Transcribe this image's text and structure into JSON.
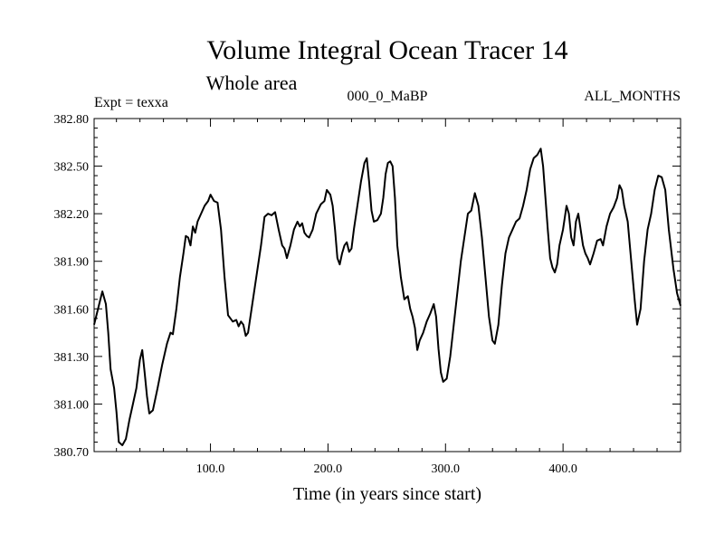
{
  "chart_data": {
    "type": "line",
    "title": "Volume Integral Ocean Tracer 14",
    "subtitle": "Whole area",
    "left_label": "Expt = texxa",
    "center_label": "000_0_MaBP",
    "right_label": "ALL_MONTHS",
    "xlabel": "Time (in years since start)",
    "ylabel": "",
    "xlim": [
      1,
      500
    ],
    "ylim": [
      380.7,
      382.8
    ],
    "x_ticks": [
      100,
      200,
      300,
      400
    ],
    "x_tick_labels": [
      "100.0",
      "200.0",
      "300.0",
      "400.0"
    ],
    "y_ticks": [
      380.7,
      381.0,
      381.3,
      381.6,
      381.9,
      382.2,
      382.5,
      382.8
    ],
    "y_tick_labels": [
      "380.70",
      "381.00",
      "381.30",
      "381.60",
      "381.90",
      "382.20",
      "382.50",
      "382.80"
    ],
    "grid": false,
    "color": "#000000",
    "series": [
      {
        "name": "Tracer 14",
        "points": [
          [
            1,
            381.5
          ],
          [
            5,
            381.62
          ],
          [
            8,
            381.71
          ],
          [
            11,
            381.63
          ],
          [
            13,
            381.45
          ],
          [
            15,
            381.22
          ],
          [
            18,
            381.1
          ],
          [
            20,
            380.95
          ],
          [
            22,
            380.76
          ],
          [
            25,
            380.74
          ],
          [
            28,
            380.78
          ],
          [
            31,
            380.9
          ],
          [
            34,
            381.0
          ],
          [
            37,
            381.1
          ],
          [
            40,
            381.28
          ],
          [
            42,
            381.34
          ],
          [
            44,
            381.2
          ],
          [
            46,
            381.05
          ],
          [
            48,
            380.94
          ],
          [
            51,
            380.96
          ],
          [
            55,
            381.1
          ],
          [
            59,
            381.25
          ],
          [
            63,
            381.38
          ],
          [
            66,
            381.45
          ],
          [
            68,
            381.44
          ],
          [
            71,
            381.6
          ],
          [
            74,
            381.8
          ],
          [
            77,
            381.95
          ],
          [
            79,
            382.06
          ],
          [
            81,
            382.05
          ],
          [
            83,
            382.0
          ],
          [
            85,
            382.12
          ],
          [
            87,
            382.08
          ],
          [
            89,
            382.15
          ],
          [
            92,
            382.2
          ],
          [
            95,
            382.25
          ],
          [
            98,
            382.28
          ],
          [
            100,
            382.32
          ],
          [
            103,
            382.28
          ],
          [
            106,
            382.27
          ],
          [
            109,
            382.1
          ],
          [
            112,
            381.8
          ],
          [
            115,
            381.56
          ],
          [
            119,
            381.52
          ],
          [
            122,
            381.53
          ],
          [
            124,
            381.49
          ],
          [
            126,
            381.52
          ],
          [
            128,
            381.5
          ],
          [
            130,
            381.43
          ],
          [
            132,
            381.45
          ],
          [
            135,
            381.6
          ],
          [
            139,
            381.8
          ],
          [
            143,
            382.0
          ],
          [
            146,
            382.18
          ],
          [
            149,
            382.2
          ],
          [
            152,
            382.19
          ],
          [
            155,
            382.21
          ],
          [
            158,
            382.1
          ],
          [
            161,
            382.0
          ],
          [
            163,
            381.98
          ],
          [
            165,
            381.92
          ],
          [
            168,
            382.0
          ],
          [
            171,
            382.1
          ],
          [
            174,
            382.15
          ],
          [
            176,
            382.12
          ],
          [
            178,
            382.14
          ],
          [
            180,
            382.08
          ],
          [
            182,
            382.06
          ],
          [
            184,
            382.05
          ],
          [
            187,
            382.1
          ],
          [
            190,
            382.2
          ],
          [
            194,
            382.26
          ],
          [
            197,
            382.28
          ],
          [
            199,
            382.35
          ],
          [
            202,
            382.32
          ],
          [
            204,
            382.25
          ],
          [
            206,
            382.1
          ],
          [
            208,
            381.92
          ],
          [
            210,
            381.88
          ],
          [
            212,
            381.95
          ],
          [
            214,
            382.0
          ],
          [
            216,
            382.02
          ],
          [
            218,
            381.96
          ],
          [
            220,
            381.98
          ],
          [
            222,
            382.1
          ],
          [
            225,
            382.25
          ],
          [
            228,
            382.4
          ],
          [
            231,
            382.52
          ],
          [
            233,
            382.55
          ],
          [
            235,
            382.4
          ],
          [
            237,
            382.22
          ],
          [
            239,
            382.15
          ],
          [
            242,
            382.16
          ],
          [
            245,
            382.2
          ],
          [
            247,
            382.3
          ],
          [
            249,
            382.45
          ],
          [
            251,
            382.52
          ],
          [
            253,
            382.53
          ],
          [
            255,
            382.5
          ],
          [
            257,
            382.3
          ],
          [
            259,
            382.0
          ],
          [
            262,
            381.8
          ],
          [
            265,
            381.66
          ],
          [
            268,
            381.68
          ],
          [
            270,
            381.6
          ],
          [
            272,
            381.55
          ],
          [
            274,
            381.48
          ],
          [
            276,
            381.34
          ],
          [
            278,
            381.4
          ],
          [
            281,
            381.45
          ],
          [
            284,
            381.52
          ],
          [
            287,
            381.57
          ],
          [
            290,
            381.63
          ],
          [
            292,
            381.55
          ],
          [
            294,
            381.35
          ],
          [
            296,
            381.2
          ],
          [
            298,
            381.14
          ],
          [
            301,
            381.16
          ],
          [
            304,
            381.3
          ],
          [
            307,
            381.5
          ],
          [
            310,
            381.7
          ],
          [
            313,
            381.9
          ],
          [
            316,
            382.05
          ],
          [
            319,
            382.2
          ],
          [
            322,
            382.22
          ],
          [
            325,
            382.33
          ],
          [
            328,
            382.25
          ],
          [
            331,
            382.05
          ],
          [
            334,
            381.8
          ],
          [
            337,
            381.55
          ],
          [
            340,
            381.4
          ],
          [
            342,
            381.38
          ],
          [
            345,
            381.5
          ],
          [
            348,
            381.75
          ],
          [
            351,
            381.95
          ],
          [
            354,
            382.05
          ],
          [
            357,
            382.1
          ],
          [
            360,
            382.15
          ],
          [
            363,
            382.17
          ],
          [
            366,
            382.25
          ],
          [
            369,
            382.35
          ],
          [
            372,
            382.48
          ],
          [
            375,
            382.55
          ],
          [
            378,
            382.57
          ],
          [
            381,
            382.61
          ],
          [
            383,
            382.5
          ],
          [
            385,
            382.3
          ],
          [
            387,
            382.1
          ],
          [
            389,
            381.92
          ],
          [
            391,
            381.86
          ],
          [
            393,
            381.83
          ],
          [
            395,
            381.88
          ],
          [
            397,
            382.0
          ],
          [
            400,
            382.1
          ],
          [
            403,
            382.25
          ],
          [
            405,
            382.2
          ],
          [
            407,
            382.05
          ],
          [
            409,
            382.0
          ],
          [
            411,
            382.15
          ],
          [
            413,
            382.2
          ],
          [
            415,
            382.1
          ],
          [
            417,
            382.0
          ],
          [
            419,
            381.95
          ],
          [
            421,
            381.92
          ],
          [
            423,
            381.88
          ],
          [
            426,
            381.95
          ],
          [
            429,
            382.03
          ],
          [
            432,
            382.04
          ],
          [
            434,
            382.0
          ],
          [
            437,
            382.12
          ],
          [
            440,
            382.2
          ],
          [
            443,
            382.24
          ],
          [
            446,
            382.3
          ],
          [
            448,
            382.38
          ],
          [
            450,
            382.35
          ],
          [
            452,
            382.25
          ],
          [
            455,
            382.15
          ],
          [
            458,
            381.9
          ],
          [
            461,
            381.65
          ],
          [
            463,
            381.5
          ],
          [
            466,
            381.6
          ],
          [
            469,
            381.9
          ],
          [
            472,
            382.1
          ],
          [
            475,
            382.2
          ],
          [
            478,
            382.35
          ],
          [
            481,
            382.44
          ],
          [
            484,
            382.43
          ],
          [
            487,
            382.35
          ],
          [
            490,
            382.1
          ],
          [
            494,
            381.85
          ],
          [
            497,
            381.7
          ],
          [
            500,
            381.62
          ]
        ]
      }
    ]
  }
}
